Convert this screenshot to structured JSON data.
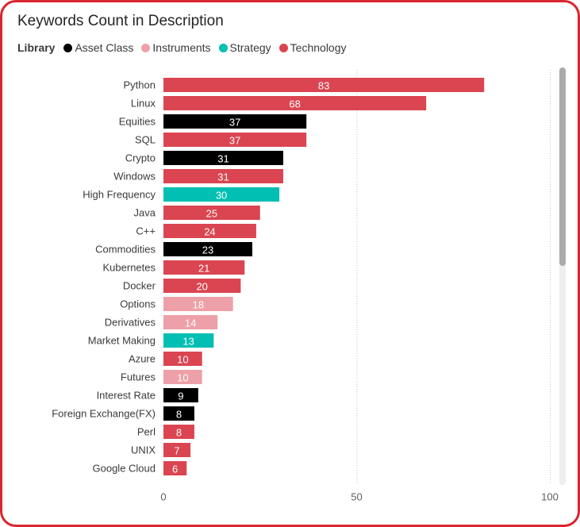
{
  "chart_data": {
    "type": "bar",
    "orientation": "horizontal",
    "title": "Keywords Count in Description",
    "legend_title": "Library",
    "legend_position": "top-left",
    "categories": [
      "Python",
      "Linux",
      "Equities",
      "SQL",
      "Crypto",
      "Windows",
      "High Frequency",
      "Java",
      "C++",
      "Commodities",
      "Kubernetes",
      "Docker",
      "Options",
      "Derivatives",
      "Market Making",
      "Azure",
      "Futures",
      "Interest Rate",
      "Foreign Exchange(FX)",
      "Perl",
      "UNIX",
      "Google Cloud"
    ],
    "series": [
      {
        "name": "Asset Class",
        "color": "#000000",
        "values": [
          null,
          null,
          37,
          null,
          31,
          null,
          null,
          null,
          null,
          23,
          null,
          null,
          null,
          null,
          null,
          null,
          null,
          9,
          8,
          null,
          null,
          null
        ]
      },
      {
        "name": "Instruments",
        "color": "#EDA0A7",
        "values": [
          null,
          null,
          null,
          null,
          null,
          null,
          null,
          null,
          null,
          null,
          null,
          null,
          18,
          14,
          null,
          null,
          10,
          null,
          null,
          null,
          null,
          null
        ]
      },
      {
        "name": "Strategy",
        "color": "#01BFB2",
        "values": [
          null,
          null,
          null,
          null,
          null,
          null,
          30,
          null,
          null,
          null,
          null,
          null,
          null,
          null,
          13,
          null,
          null,
          null,
          null,
          null,
          null,
          null
        ]
      },
      {
        "name": "Technology",
        "color": "#DA4551",
        "values": [
          83,
          68,
          null,
          37,
          null,
          31,
          null,
          25,
          24,
          null,
          21,
          20,
          null,
          null,
          null,
          10,
          null,
          null,
          null,
          8,
          7,
          6
        ]
      }
    ],
    "xlim": [
      0,
      100
    ],
    "xticks": [
      0,
      50,
      100
    ],
    "grid": true,
    "data_labels": true
  }
}
